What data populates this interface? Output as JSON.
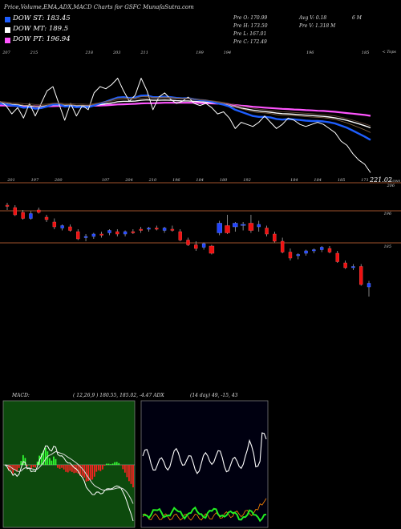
{
  "header": {
    "title": "Price,Volume,EMA,ADX,MACD Charts for GSFC MunafaSutra.com"
  },
  "legend": [
    {
      "label": "DOW ST: 183.45",
      "color": "#1e5eff"
    },
    {
      "label": "DOW MT: 189.5",
      "color": "#ffffff"
    },
    {
      "label": "DOW PT: 196.94",
      "color": "#ff55ff"
    }
  ],
  "stats": {
    "prev_open": "Pre   O: 170.99",
    "prev_high": "Pre   H: 173.50",
    "prev_low": "Pre   L: 167.01",
    "prev_close": "Pre   C: 172.49",
    "avg_value": "Avg V: 0.18",
    "avg_unit": "6   M",
    "prev_volume": "Pre   V: 1.318 M"
  },
  "top_panel": {
    "corner_label": "< Tops",
    "price_label": "221.02",
    "lows_label": "Lows",
    "top_values": [
      "207",
      "215",
      "",
      "218",
      "203",
      "211",
      "",
      "199",
      "194",
      "",
      "",
      "196",
      "",
      "185",
      ""
    ],
    "low_values": [
      "201",
      "197",
      "200",
      "",
      "197",
      "204",
      "210",
      "196",
      "184",
      "180",
      "192",
      "",
      "184",
      "184",
      "185",
      "171"
    ]
  },
  "candle_panel": {
    "levels": [
      "206",
      "196",
      "185"
    ]
  },
  "indicators": {
    "macd_label": "MACD:",
    "macd_values": "( 12,26,9 ) 180.55,  185.02, -4.47 ADX",
    "adx_values": "(14  day) 49,  -15,  43"
  },
  "chart_data": [
    {
      "type": "line",
      "name": "price-ema-panel",
      "series": [
        {
          "name": "close",
          "color": "#ffffff",
          "values": [
            207,
            205,
            201,
            204,
            199,
            206,
            200,
            206,
            212,
            214,
            206,
            198,
            206,
            200,
            205,
            203,
            211,
            214,
            213,
            215,
            218,
            212,
            207,
            210,
            218,
            212,
            203,
            209,
            211,
            208,
            206,
            207,
            209,
            206,
            205,
            206,
            204,
            201,
            202,
            199,
            194,
            197,
            196,
            195,
            197,
            200,
            197,
            194,
            196,
            199,
            198,
            196,
            195,
            196,
            197,
            196,
            194,
            192,
            188,
            186,
            182,
            179,
            177,
            173
          ]
        },
        {
          "name": "DOW ST",
          "color": "#1e5eff",
          "values": [
            206,
            205.5,
            205,
            204.8,
            204,
            204.2,
            203.5,
            203.8,
            204.5,
            205.5,
            205.5,
            204.5,
            204.8,
            204.2,
            204.4,
            204.2,
            205,
            206,
            206.8,
            207.8,
            208.8,
            209,
            208.6,
            208.8,
            209.7,
            209.8,
            209,
            209,
            209.2,
            209,
            208.6,
            208.4,
            208.5,
            208,
            207.6,
            207.4,
            206.8,
            206,
            205.4,
            204.5,
            203,
            202,
            201,
            200,
            199.6,
            199.6,
            199.3,
            198.6,
            198.3,
            198.5,
            198.4,
            198.1,
            197.8,
            197.6,
            197.6,
            197.4,
            197,
            196.4,
            195.4,
            194.4,
            193,
            191.6,
            190.2,
            188.6
          ]
        },
        {
          "name": "DOW MT",
          "color": "#ffffff",
          "values": [
            206,
            205.8,
            205.5,
            205.3,
            205,
            204.9,
            204.6,
            204.6,
            204.8,
            205.2,
            205.3,
            205,
            205,
            204.8,
            204.8,
            204.7,
            205,
            205.4,
            205.8,
            206.2,
            206.8,
            207,
            207,
            207.1,
            207.5,
            207.7,
            207.5,
            207.5,
            207.6,
            207.5,
            207.3,
            207.2,
            207.2,
            207,
            206.8,
            206.6,
            206.4,
            206,
            205.6,
            205,
            204.4,
            203.8,
            203.3,
            202.8,
            202.4,
            202.1,
            201.8,
            201.4,
            201.1,
            201,
            200.8,
            200.6,
            200.4,
            200.2,
            200,
            199.8,
            199.5,
            199.1,
            198.5,
            197.9,
            197.1,
            196.3,
            195.4,
            194.4
          ]
        },
        {
          "name": "DOW PT",
          "color": "#ff55ff",
          "values": [
            205,
            205,
            204.9,
            204.8,
            204.7,
            204.7,
            204.6,
            204.6,
            204.6,
            204.7,
            204.8,
            204.8,
            204.8,
            204.8,
            204.8,
            204.8,
            204.9,
            205,
            205.1,
            205.3,
            205.5,
            205.6,
            205.7,
            205.8,
            206,
            206.1,
            206.1,
            206.2,
            206.3,
            206.3,
            206.3,
            206.3,
            206.3,
            206.3,
            206.2,
            206.1,
            206,
            205.9,
            205.7,
            205.5,
            205.2,
            204.9,
            204.7,
            204.4,
            204.2,
            204,
            203.8,
            203.6,
            203.4,
            203.3,
            203.1,
            203,
            202.8,
            202.7,
            202.5,
            202.4,
            202.2,
            202,
            201.7,
            201.4,
            201.1,
            200.8,
            200.5,
            200.1
          ]
        }
      ]
    },
    {
      "type": "bar",
      "name": "candlestick-panel",
      "candles": [
        [
          205,
          206,
          203,
          204.5
        ],
        [
          204,
          205,
          200.5,
          201
        ],
        [
          202,
          203,
          199,
          199.5
        ],
        [
          199.5,
          202.5,
          199,
          201.5
        ],
        [
          203,
          204,
          201.5,
          202
        ],
        [
          200,
          201,
          198,
          199
        ],
        [
          198,
          199.5,
          195,
          196
        ],
        [
          195.5,
          197,
          194.5,
          196.5
        ],
        [
          196,
          197,
          194,
          194.5
        ],
        [
          194,
          195,
          190.5,
          191
        ],
        [
          191.5,
          193,
          190,
          192
        ],
        [
          192,
          193.5,
          191,
          193
        ],
        [
          193,
          194,
          191.5,
          192.5
        ],
        [
          193.5,
          195,
          192.5,
          194.5
        ],
        [
          194,
          195,
          192,
          193
        ],
        [
          193,
          194.5,
          192,
          194
        ],
        [
          194,
          195,
          193,
          193.5
        ],
        [
          195,
          196,
          193.5,
          194.5
        ],
        [
          195,
          196,
          194,
          195.5
        ],
        [
          195.5,
          196.5,
          194.5,
          195
        ],
        [
          194.5,
          196,
          193.5,
          195.5
        ],
        [
          195,
          196.5,
          194,
          194.5
        ],
        [
          194,
          195,
          190,
          190.5
        ],
        [
          190.5,
          191.5,
          188,
          188.5
        ],
        [
          188.5,
          190,
          186,
          187
        ],
        [
          187.5,
          189.5,
          186.5,
          189
        ],
        [
          188,
          188.5,
          184.5,
          185
        ],
        [
          193.5,
          198.5,
          192.5,
          197.5
        ],
        [
          196.5,
          201,
          193,
          193.5
        ],
        [
          196,
          198,
          194,
          197.5
        ],
        [
          197,
          198,
          194.5,
          197
        ],
        [
          197.5,
          201,
          193.5,
          194.5
        ],
        [
          196,
          198.5,
          194,
          197
        ],
        [
          195.5,
          196.5,
          192,
          193
        ],
        [
          193,
          194,
          189.5,
          190
        ],
        [
          190,
          191.5,
          185,
          185.5
        ],
        [
          185.5,
          187,
          182,
          183
        ],
        [
          184,
          185,
          182.5,
          184.5
        ],
        [
          185,
          186.5,
          184,
          186
        ],
        [
          186,
          187,
          185,
          186.5
        ],
        [
          186.5,
          188,
          185.5,
          187.5
        ],
        [
          187,
          188,
          185,
          185.5
        ],
        [
          185,
          186,
          181,
          181.5
        ],
        [
          181,
          182,
          178.5,
          179
        ],
        [
          179,
          180.5,
          178,
          179.5
        ],
        [
          179.5,
          180.5,
          171.5,
          172
        ],
        [
          171,
          173.5,
          167,
          172.5
        ]
      ]
    },
    {
      "type": "line",
      "name": "macd-panel",
      "series": [
        {
          "name": "MACD",
          "color": "#ffffff"
        },
        {
          "name": "Signal",
          "color": "#ffffff"
        },
        {
          "name": "Histogram",
          "color": "mixed"
        }
      ]
    },
    {
      "type": "line",
      "name": "adx-panel",
      "series": [
        {
          "name": "ADX",
          "color": "#ffffff"
        },
        {
          "name": "+DI",
          "color": "#ff8800"
        },
        {
          "name": "-DI",
          "color": "#22ee22"
        }
      ]
    }
  ]
}
